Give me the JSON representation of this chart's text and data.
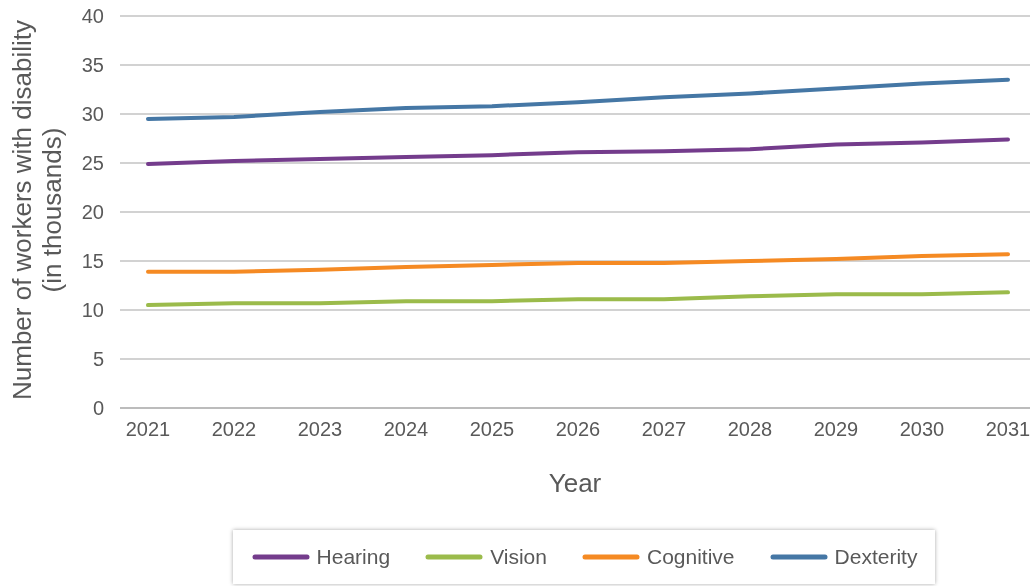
{
  "chart_data": {
    "type": "line",
    "xlabel": "Year",
    "ylabel": "Number of workers with disability (in thousands)",
    "categories": [
      "2021",
      "2022",
      "2023",
      "2024",
      "2025",
      "2026",
      "2027",
      "2028",
      "2029",
      "2030",
      "2031"
    ],
    "series": [
      {
        "name": "Hearing",
        "color": "#743c8c",
        "values": [
          24.9,
          25.2,
          25.4,
          25.6,
          25.8,
          26.1,
          26.2,
          26.4,
          26.9,
          27.1,
          27.4
        ]
      },
      {
        "name": "Vision",
        "color": "#9bbb4b",
        "values": [
          10.5,
          10.7,
          10.7,
          10.9,
          10.9,
          11.1,
          11.1,
          11.4,
          11.6,
          11.6,
          11.8
        ]
      },
      {
        "name": "Cognitive",
        "color": "#f58a23",
        "values": [
          13.9,
          13.9,
          14.1,
          14.4,
          14.6,
          14.8,
          14.8,
          15.0,
          15.2,
          15.5,
          15.7
        ]
      },
      {
        "name": "Dexterity",
        "color": "#4577a5",
        "values": [
          29.5,
          29.7,
          30.2,
          30.6,
          30.8,
          31.2,
          31.7,
          32.1,
          32.6,
          33.1,
          33.5
        ]
      }
    ],
    "ylim": [
      0,
      40
    ],
    "yticks": [
      0,
      5,
      10,
      15,
      20,
      25,
      30,
      35,
      40
    ],
    "grid": "y",
    "legend": "bottom",
    "marker": "none",
    "line_style": "solid"
  }
}
